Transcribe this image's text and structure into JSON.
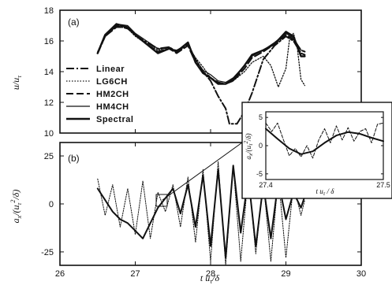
{
  "chart_data": [
    {
      "panel": "(a)",
      "type": "line",
      "xlim": [
        26,
        30
      ],
      "ylim": [
        10,
        18
      ],
      "xticks": [
        "26",
        "27",
        "28",
        "29",
        "30"
      ],
      "yticks": [
        "10",
        "12",
        "14",
        "16",
        "18"
      ],
      "ylabel": "u/uτ",
      "legend_position": "left-middle",
      "series": [
        {
          "name": "Linear",
          "dash": "10,3,2,3",
          "width": 2.0,
          "x": [
            26.5,
            26.6,
            26.75,
            26.9,
            27.0,
            27.15,
            27.3,
            27.45,
            27.55,
            27.7,
            27.8,
            27.9,
            28.0,
            28.1,
            28.2,
            28.25,
            28.35,
            28.45,
            28.55,
            28.7,
            28.85,
            29.0,
            29.1,
            29.2,
            29.25
          ],
          "y": [
            15.2,
            16.3,
            17.0,
            16.8,
            16.4,
            15.9,
            15.5,
            15.6,
            15.3,
            15.8,
            14.8,
            14.0,
            13.4,
            12.4,
            11.6,
            10.6,
            10.6,
            11.4,
            12.6,
            14.8,
            15.7,
            16.3,
            16.0,
            15.2,
            15.1
          ]
        },
        {
          "name": "LG6CH",
          "dash": "1.5,2",
          "width": 1.3,
          "x": [
            26.5,
            26.6,
            26.75,
            26.9,
            27.0,
            27.15,
            27.3,
            27.45,
            27.55,
            27.7,
            27.8,
            27.9,
            28.0,
            28.1,
            28.2,
            28.3,
            28.45,
            28.55,
            28.7,
            28.8,
            28.9,
            29.0,
            29.05,
            29.1,
            29.15,
            29.2,
            29.25
          ],
          "y": [
            15.3,
            16.4,
            17.0,
            16.8,
            16.3,
            15.8,
            15.4,
            15.6,
            15.3,
            15.7,
            14.9,
            14.3,
            13.6,
            13.3,
            13.2,
            13.4,
            14.0,
            14.6,
            15.0,
            14.4,
            13.0,
            14.2,
            16.2,
            16.5,
            15.6,
            13.5,
            13.1
          ]
        },
        {
          "name": "HM2CH",
          "dash": "9,4",
          "width": 2.0,
          "x": [
            26.5,
            26.6,
            26.75,
            26.9,
            27.0,
            27.15,
            27.3,
            27.45,
            27.55,
            27.7,
            27.8,
            27.9,
            28.0,
            28.1,
            28.2,
            28.3,
            28.45,
            28.55,
            28.7,
            28.85,
            29.0,
            29.1,
            29.2,
            29.25
          ],
          "y": [
            15.2,
            16.3,
            16.9,
            16.9,
            16.4,
            15.8,
            15.3,
            15.5,
            15.2,
            15.7,
            14.6,
            14.0,
            13.6,
            13.3,
            13.2,
            13.4,
            14.2,
            14.9,
            15.3,
            15.8,
            16.4,
            16.1,
            15.4,
            15.3
          ]
        },
        {
          "name": "HM4CH",
          "dash": "",
          "width": 1.2,
          "x": [
            26.5,
            26.6,
            26.75,
            26.9,
            27.0,
            27.15,
            27.3,
            27.45,
            27.55,
            27.7,
            27.8,
            27.9,
            28.0,
            28.1,
            28.2,
            28.3,
            28.45,
            28.55,
            28.7,
            28.85,
            29.0,
            29.1,
            29.2,
            29.25
          ],
          "y": [
            15.2,
            16.4,
            17.1,
            17.0,
            16.5,
            16.0,
            15.5,
            15.5,
            15.4,
            15.8,
            14.8,
            14.1,
            13.8,
            13.4,
            13.3,
            13.6,
            14.4,
            15.0,
            15.4,
            15.9,
            16.5,
            16.2,
            15.4,
            15.3
          ]
        },
        {
          "name": "Spectral",
          "dash": "",
          "width": 2.4,
          "x": [
            26.5,
            26.6,
            26.75,
            26.9,
            27.0,
            27.15,
            27.3,
            27.45,
            27.55,
            27.7,
            27.8,
            27.9,
            28.0,
            28.1,
            28.2,
            28.3,
            28.45,
            28.55,
            28.7,
            28.85,
            29.0,
            29.1,
            29.2,
            29.25
          ],
          "y": [
            15.2,
            16.4,
            17.1,
            16.9,
            16.4,
            15.8,
            15.2,
            15.5,
            15.3,
            15.9,
            14.6,
            13.9,
            13.6,
            13.2,
            13.2,
            13.5,
            14.4,
            15.1,
            15.4,
            15.8,
            16.6,
            16.3,
            15.0,
            15.0
          ]
        }
      ]
    },
    {
      "panel": "(b)",
      "type": "line",
      "xlim": [
        26,
        30
      ],
      "ylim": [
        -32,
        32
      ],
      "xticks": [
        "26",
        "27",
        "28",
        "29",
        "30"
      ],
      "yticks": [
        "25",
        "0",
        "-25"
      ],
      "ylabel": "aₓ/(uτ²/δ)",
      "xlabel": "t uτ/δ",
      "series": [
        {
          "name": "Spectral",
          "dash": "",
          "width": 2.0,
          "x": [
            26.5,
            26.6,
            26.7,
            26.8,
            26.9,
            27.0,
            27.1,
            27.2,
            27.3,
            27.4,
            27.5,
            27.6,
            27.7,
            27.8,
            27.9,
            28.0,
            28.1,
            28.2,
            28.3,
            28.4,
            28.5,
            28.6,
            28.7,
            28.8,
            28.9,
            29.0,
            29.1,
            29.2,
            29.25
          ],
          "y": [
            8,
            2,
            -4,
            -8,
            -10,
            -14,
            -18,
            -10,
            -2,
            3,
            8,
            -5,
            10,
            -12,
            15,
            -22,
            18,
            -28,
            20,
            -15,
            14,
            -22,
            10,
            -18,
            12,
            -8,
            6,
            -2,
            4
          ]
        },
        {
          "name": "LG6CH",
          "dash": "1.5,1.5",
          "width": 1.0,
          "x": [
            26.5,
            26.6,
            26.7,
            26.8,
            26.9,
            27.0,
            27.1,
            27.2,
            27.3,
            27.4,
            27.5,
            27.6,
            27.7,
            27.8,
            27.9,
            28.0,
            28.1,
            28.2,
            28.3,
            28.4,
            28.5,
            28.6,
            28.7,
            28.8,
            28.9,
            29.0,
            29.1,
            29.2,
            29.25
          ],
          "y": [
            13,
            -6,
            10,
            -12,
            8,
            -16,
            12,
            -18,
            6,
            -4,
            10,
            -12,
            14,
            -20,
            18,
            -30,
            22,
            -32,
            20,
            -30,
            16,
            -26,
            12,
            -30,
            14,
            -28,
            10,
            -6,
            2
          ]
        }
      ]
    },
    {
      "panel": "inset",
      "type": "line",
      "xlim": [
        27.4,
        27.5
      ],
      "ylim": [
        -6,
        6
      ],
      "xticks": [
        "27.4",
        "27.5"
      ],
      "yticks": [
        "5",
        "0",
        "-5"
      ],
      "ylabel": "aₓ/(uτ²/δ)",
      "xlabel": "t uτ / δ",
      "series": [
        {
          "name": "Spectral",
          "dash": "",
          "width": 2.0,
          "x": [
            27.4,
            27.41,
            27.42,
            27.43,
            27.44,
            27.45,
            27.46,
            27.47,
            27.48,
            27.49,
            27.5
          ],
          "y": [
            3,
            1.2,
            -0.5,
            -1.5,
            -1,
            0.5,
            1.8,
            2.4,
            2.1,
            1.4,
            0.8
          ]
        },
        {
          "name": "LG6CH",
          "dash": "4,2",
          "width": 1.0,
          "x": [
            27.4,
            27.405,
            27.41,
            27.415,
            27.42,
            27.425,
            27.43,
            27.435,
            27.44,
            27.445,
            27.45,
            27.455,
            27.46,
            27.465,
            27.47,
            27.475,
            27.48,
            27.485,
            27.49,
            27.495,
            27.5
          ],
          "y": [
            4,
            2.5,
            4,
            1,
            -1.8,
            -0.5,
            -2,
            0,
            -2.2,
            1,
            3,
            0.5,
            3.5,
            1,
            3.2,
            0.8,
            2.5,
            3,
            0.5,
            3.8,
            4
          ]
        }
      ]
    }
  ],
  "labels": {
    "panel_a": "(a)",
    "panel_b": "(b)",
    "ylabel_a": "u/u",
    "ylabel_a_sub": "τ",
    "xlabel": "t u",
    "xlabel_sub": "τ",
    "xlabel_tail": "/δ",
    "inset_xlabel": "t u",
    "inset_xlabel_sub": "τ",
    "inset_xlabel_tail": " / δ"
  }
}
